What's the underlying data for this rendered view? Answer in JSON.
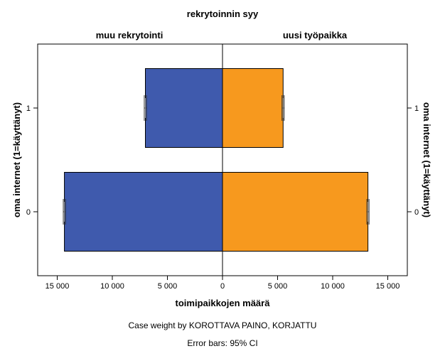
{
  "chart_data": {
    "type": "bar",
    "orientation": "horizontal-back-to-back",
    "title": "rekrytoinnin syy",
    "panels": [
      {
        "name": "muu rekrytointi",
        "side": "left",
        "color": "#3F5AAD"
      },
      {
        "name": "uusi työpaikka",
        "side": "right",
        "color": "#F7991E"
      }
    ],
    "categories": [
      "1",
      "0"
    ],
    "series": [
      {
        "name": "muu rekrytointi",
        "values": [
          7000,
          14350
        ],
        "ci": [
          [
            6900,
            7100
          ],
          [
            14250,
            14450
          ]
        ]
      },
      {
        "name": "uusi työpaikka",
        "values": [
          5500,
          13200
        ],
        "ci": [
          [
            5400,
            5600
          ],
          [
            13100,
            13300
          ]
        ]
      }
    ],
    "xlabel": "toimipaikkojen määrä",
    "ylabel_left": "oma internet (1=käyttänyt)",
    "ylabel_right": "oma internet (1=käyttänyt)",
    "xlim": [
      -17000,
      17000
    ],
    "xticks": [
      -15000,
      -10000,
      -5000,
      0,
      5000,
      10000,
      15000
    ],
    "xtick_labels": [
      "15 000",
      "10 000",
      "5 000",
      "0",
      "5 000",
      "10 000",
      "15 000"
    ],
    "ytick_labels": [
      "1",
      "0"
    ],
    "grid": false
  },
  "footnotes": {
    "weight": "Case weight by KOROTTAVA PAINO, KORJATTU",
    "errorbars": "Error bars: 95% CI"
  }
}
